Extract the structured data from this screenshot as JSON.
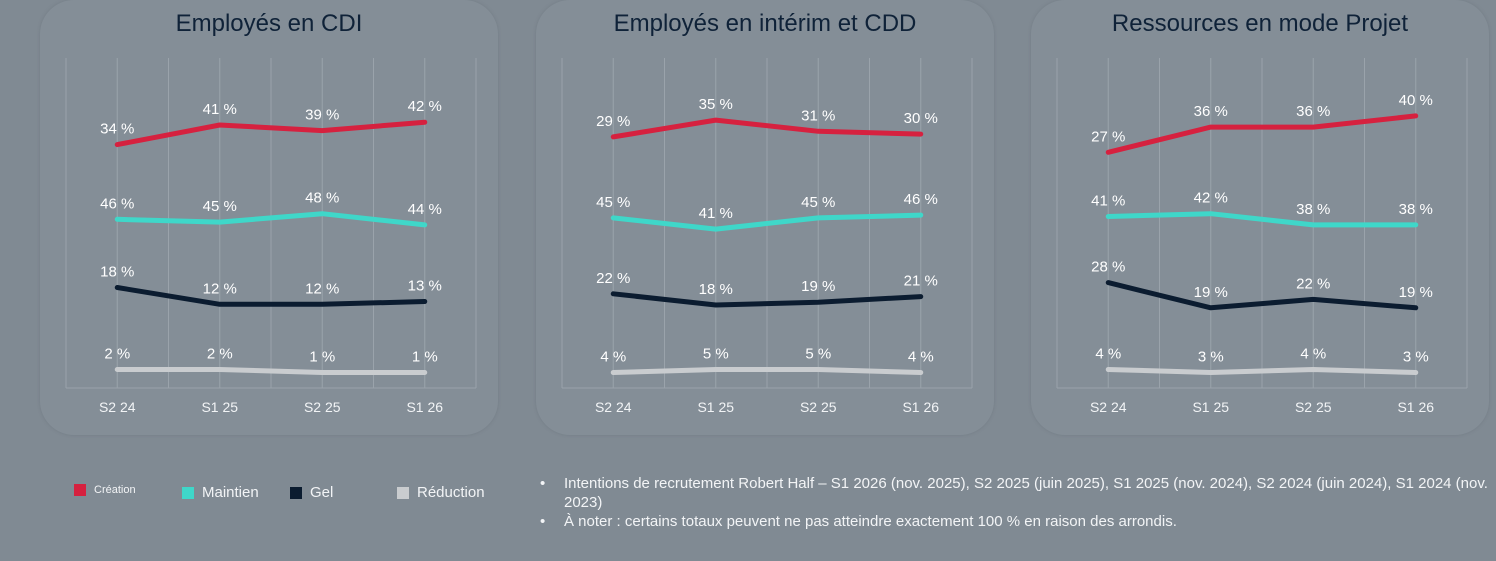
{
  "chart_data": [
    {
      "type": "line",
      "title": "Employés en CDI",
      "categories": [
        "S2 24",
        "S1 25",
        "S2 25",
        "S1 26"
      ],
      "xlabel": "",
      "ylabel": "",
      "grid": "vertical",
      "series": [
        {
          "name": "Création",
          "color": "#d6213f",
          "values": [
            34,
            41,
            39,
            42
          ],
          "labels": [
            "34 %",
            "41 %",
            "39 %",
            "42 %"
          ]
        },
        {
          "name": "Maintien",
          "color": "#3fd7c9",
          "values": [
            46,
            45,
            48,
            44
          ],
          "labels": [
            "46 %",
            "45 %",
            "48 %",
            "44 %"
          ]
        },
        {
          "name": "Gel",
          "color": "#0b1c30",
          "values": [
            18,
            12,
            12,
            13
          ],
          "labels": [
            "18 %",
            "12 %",
            "12 %",
            "13 %"
          ]
        },
        {
          "name": "Réduction",
          "color": "#c9cccf",
          "values": [
            2,
            2,
            1,
            1
          ],
          "labels": [
            "2 %",
            "2 %",
            "1 %",
            "1 %"
          ]
        }
      ]
    },
    {
      "type": "line",
      "title": "Employés en intérim et CDD",
      "categories": [
        "S2 24",
        "S1 25",
        "S2 25",
        "S1 26"
      ],
      "xlabel": "",
      "ylabel": "",
      "grid": "vertical",
      "series": [
        {
          "name": "Création",
          "color": "#d6213f",
          "values": [
            29,
            35,
            31,
            30
          ],
          "labels": [
            "29 %",
            "35 %",
            "31 %",
            "30 %"
          ]
        },
        {
          "name": "Maintien",
          "color": "#3fd7c9",
          "values": [
            45,
            41,
            45,
            46
          ],
          "labels": [
            "45 %",
            "41 %",
            "45 %",
            "46 %"
          ]
        },
        {
          "name": "Gel",
          "color": "#0b1c30",
          "values": [
            22,
            18,
            19,
            21
          ],
          "labels": [
            "22 %",
            "18 %",
            "19 %",
            "21 %"
          ]
        },
        {
          "name": "Réduction",
          "color": "#c9cccf",
          "values": [
            4,
            5,
            5,
            4
          ],
          "labels": [
            "4 %",
            "5 %",
            "5 %",
            "4 %"
          ]
        }
      ]
    },
    {
      "type": "line",
      "title": "Ressources en mode Projet",
      "categories": [
        "S2 24",
        "S1 25",
        "S2 25",
        "S1 26"
      ],
      "xlabel": "",
      "ylabel": "",
      "grid": "vertical",
      "series": [
        {
          "name": "Création",
          "color": "#d6213f",
          "values": [
            27,
            36,
            36,
            40
          ],
          "labels": [
            "27 %",
            "36 %",
            "36 %",
            "40 %"
          ]
        },
        {
          "name": "Maintien",
          "color": "#3fd7c9",
          "values": [
            41,
            42,
            38,
            38
          ],
          "labels": [
            "41 %",
            "42 %",
            "38 %",
            "38 %"
          ]
        },
        {
          "name": "Gel",
          "color": "#0b1c30",
          "values": [
            28,
            19,
            22,
            19
          ],
          "labels": [
            "28 %",
            "19 %",
            "22 %",
            "19 %"
          ]
        },
        {
          "name": "Réduction",
          "color": "#c9cccf",
          "values": [
            4,
            3,
            4,
            3
          ],
          "labels": [
            "4 %",
            "3 %",
            "4 %",
            "3 %"
          ]
        }
      ]
    }
  ],
  "legend": [
    {
      "label": "Création",
      "color": "#d6213f"
    },
    {
      "label": "Maintien",
      "color": "#3fd7c9"
    },
    {
      "label": "Gel",
      "color": "#0b1c30"
    },
    {
      "label": "Réduction",
      "color": "#c9cccf"
    }
  ],
  "notes": {
    "bullet": "•",
    "items": [
      "Intentions de recrutement Robert Half – S1 2026 (nov. 2025), S2 2025 (juin 2025), S1 2025 (nov. 2024), S2 2024 (juin 2024), S1 2024 (nov. 2023)",
      "À noter : certains totaux peuvent ne pas atteindre exactement 100 % en raison des arrondis."
    ]
  }
}
